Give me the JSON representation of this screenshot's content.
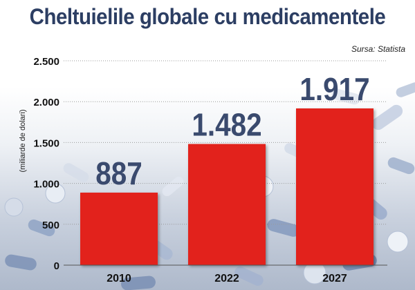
{
  "title": "Cheltuielile globale cu medicamentele",
  "source": "Sursa: Statista",
  "chart_data": {
    "type": "bar",
    "categories": [
      "2010",
      "2022",
      "2027"
    ],
    "values": [
      887,
      1482,
      1917
    ],
    "value_labels": [
      "887",
      "1.482",
      "1.917"
    ],
    "ylabel": "(miliarde de dolari)",
    "ylim": [
      0,
      2500
    ],
    "yticks": [
      0,
      500,
      1000,
      1500,
      2000,
      2500
    ],
    "ytick_labels": [
      "0",
      "500",
      "1.000",
      "1.500",
      "2.000",
      "2.500"
    ],
    "grid": true,
    "bar_color": "#e2231a",
    "label_color": "#3a4a6e"
  }
}
